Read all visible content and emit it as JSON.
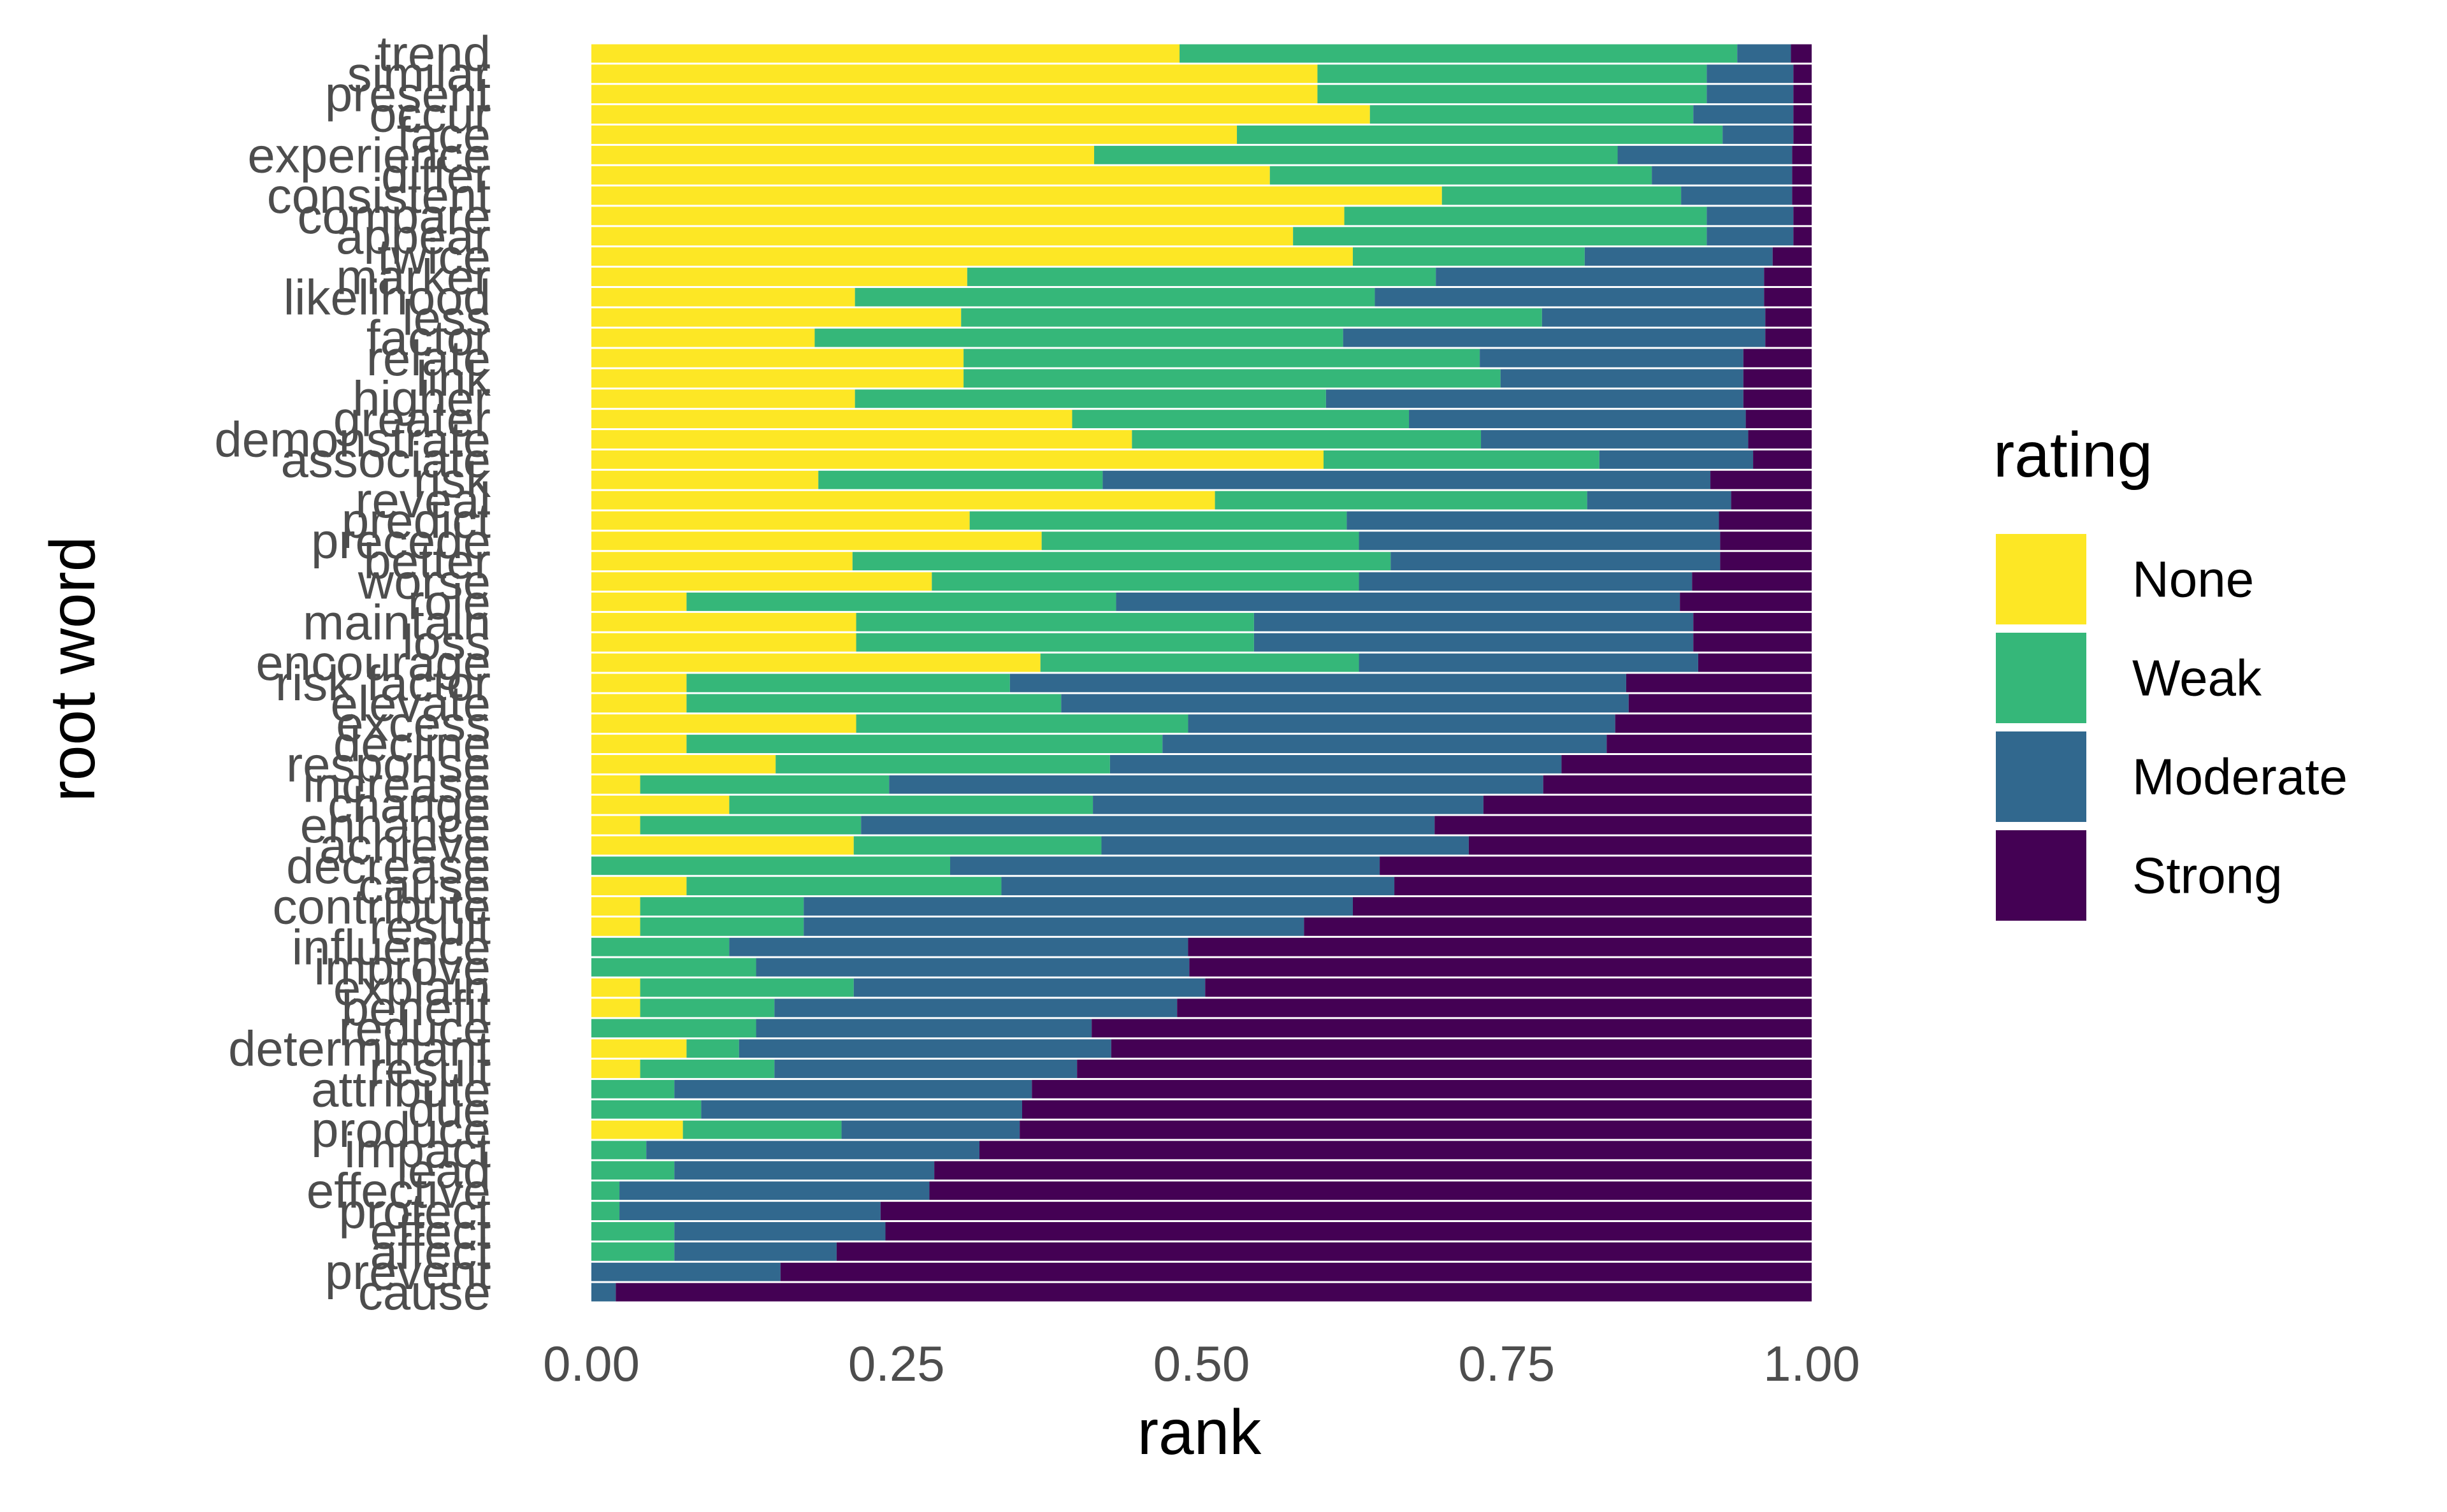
{
  "chart_data": {
    "type": "bar",
    "orientation": "horizontal",
    "stacked": "fill",
    "xlabel": "rank",
    "ylabel": "root word",
    "xlim": [
      0,
      1
    ],
    "xticks": [
      "0.00",
      "0.25",
      "0.50",
      "0.75",
      "1.00"
    ],
    "grid": false,
    "legend": {
      "title": "rating",
      "position": "right"
    },
    "series": [
      {
        "name": "None",
        "color": "#FDE725"
      },
      {
        "name": "Weak",
        "color": "#35B779"
      },
      {
        "name": "Moderate",
        "color": "#31688E"
      },
      {
        "name": "Strong",
        "color": "#440154"
      }
    ],
    "rows": [
      {
        "word": "trend",
        "values": [
          0.482,
          0.457,
          0.044,
          0.017
        ]
      },
      {
        "word": "similar",
        "values": [
          0.595,
          0.319,
          0.071,
          0.015
        ]
      },
      {
        "word": "present",
        "values": [
          0.595,
          0.319,
          0.071,
          0.015
        ]
      },
      {
        "word": "occur",
        "values": [
          0.638,
          0.265,
          0.082,
          0.015
        ]
      },
      {
        "word": "face",
        "values": [
          0.529,
          0.398,
          0.058,
          0.015
        ]
      },
      {
        "word": "experience",
        "values": [
          0.412,
          0.429,
          0.143,
          0.016
        ]
      },
      {
        "word": "differ",
        "values": [
          0.556,
          0.313,
          0.115,
          0.016
        ]
      },
      {
        "word": "consistent",
        "values": [
          0.697,
          0.196,
          0.091,
          0.016
        ]
      },
      {
        "word": "compare",
        "values": [
          0.617,
          0.297,
          0.071,
          0.015
        ]
      },
      {
        "word": "appear",
        "values": [
          0.575,
          0.339,
          0.071,
          0.015
        ]
      },
      {
        "word": "twice",
        "values": [
          0.624,
          0.19,
          0.154,
          0.032
        ]
      },
      {
        "word": "marker",
        "values": [
          0.308,
          0.384,
          0.269,
          0.039
        ]
      },
      {
        "word": "likelihood",
        "values": [
          0.216,
          0.426,
          0.319,
          0.039
        ]
      },
      {
        "word": "less",
        "values": [
          0.303,
          0.476,
          0.183,
          0.038
        ]
      },
      {
        "word": "factor",
        "values": [
          0.183,
          0.433,
          0.346,
          0.038
        ]
      },
      {
        "word": "relate",
        "values": [
          0.305,
          0.423,
          0.216,
          0.056
        ]
      },
      {
        "word": "link",
        "values": [
          0.305,
          0.44,
          0.199,
          0.056
        ]
      },
      {
        "word": "higher",
        "values": [
          0.216,
          0.386,
          0.342,
          0.056
        ]
      },
      {
        "word": "greater",
        "values": [
          0.394,
          0.276,
          0.276,
          0.054
        ]
      },
      {
        "word": "demonstrate",
        "values": [
          0.443,
          0.286,
          0.219,
          0.052
        ]
      },
      {
        "word": "associate",
        "values": [
          0.6,
          0.226,
          0.126,
          0.048
        ]
      },
      {
        "word": "risk",
        "values": [
          0.186,
          0.233,
          0.498,
          0.083
        ]
      },
      {
        "word": "reveal",
        "values": [
          0.511,
          0.305,
          0.118,
          0.066
        ]
      },
      {
        "word": "predict",
        "values": [
          0.31,
          0.309,
          0.305,
          0.076
        ]
      },
      {
        "word": "precede",
        "values": [
          0.369,
          0.26,
          0.296,
          0.075
        ]
      },
      {
        "word": "better",
        "values": [
          0.214,
          0.441,
          0.27,
          0.075
        ]
      },
      {
        "word": "worse",
        "values": [
          0.279,
          0.35,
          0.273,
          0.098
        ]
      },
      {
        "word": "role",
        "values": [
          0.078,
          0.352,
          0.462,
          0.108
        ]
      },
      {
        "word": "maintain",
        "values": [
          0.217,
          0.326,
          0.36,
          0.097
        ]
      },
      {
        "word": "loss",
        "values": [
          0.217,
          0.326,
          0.36,
          0.097
        ]
      },
      {
        "word": "encourage",
        "values": [
          0.368,
          0.261,
          0.278,
          0.093
        ]
      },
      {
        "word": "risk factor",
        "values": [
          0.078,
          0.265,
          0.505,
          0.152
        ]
      },
      {
        "word": "elevate",
        "values": [
          0.078,
          0.307,
          0.465,
          0.15
        ]
      },
      {
        "word": "excess",
        "values": [
          0.217,
          0.272,
          0.35,
          0.161
        ]
      },
      {
        "word": "decline",
        "values": [
          0.078,
          0.39,
          0.364,
          0.168
        ]
      },
      {
        "word": "response",
        "values": [
          0.151,
          0.274,
          0.37,
          0.205
        ]
      },
      {
        "word": "increase",
        "values": [
          0.04,
          0.204,
          0.536,
          0.22
        ]
      },
      {
        "word": "change",
        "values": [
          0.113,
          0.298,
          0.32,
          0.269
        ]
      },
      {
        "word": "enhance",
        "values": [
          0.04,
          0.181,
          0.47,
          0.309
        ]
      },
      {
        "word": "achieve",
        "values": [
          0.215,
          0.203,
          0.301,
          0.281
        ]
      },
      {
        "word": "decrease",
        "values": [
          0.0,
          0.294,
          0.352,
          0.354
        ]
      },
      {
        "word": "cause",
        "values": [
          0.078,
          0.258,
          0.322,
          0.342
        ]
      },
      {
        "word": "contribute",
        "values": [
          0.04,
          0.134,
          0.45,
          0.376
        ]
      },
      {
        "word": "result",
        "values": [
          0.04,
          0.134,
          0.41,
          0.416
        ]
      },
      {
        "word": "influence",
        "values": [
          0.0,
          0.113,
          0.376,
          0.511
        ]
      },
      {
        "word": "improve",
        "values": [
          0.0,
          0.135,
          0.355,
          0.51
        ]
      },
      {
        "word": "explain",
        "values": [
          0.04,
          0.175,
          0.288,
          0.497
        ]
      },
      {
        "word": "benefit",
        "values": [
          0.04,
          0.11,
          0.33,
          0.52
        ]
      },
      {
        "word": "reduce",
        "values": [
          0.0,
          0.135,
          0.275,
          0.59
        ]
      },
      {
        "word": "determinant",
        "values": [
          0.078,
          0.043,
          0.305,
          0.574
        ]
      },
      {
        "word": "result",
        "values": [
          0.04,
          0.11,
          0.248,
          0.602
        ]
      },
      {
        "word": "attribute",
        "values": [
          0.0,
          0.068,
          0.293,
          0.639
        ]
      },
      {
        "word": "due",
        "values": [
          0.0,
          0.09,
          0.263,
          0.647
        ]
      },
      {
        "word": "produce",
        "values": [
          0.075,
          0.13,
          0.146,
          0.649
        ]
      },
      {
        "word": "impact",
        "values": [
          0.0,
          0.045,
          0.273,
          0.682
        ]
      },
      {
        "word": "lead",
        "values": [
          0.0,
          0.068,
          0.213,
          0.719
        ]
      },
      {
        "word": "effective",
        "values": [
          0.0,
          0.023,
          0.254,
          0.723
        ]
      },
      {
        "word": "protect",
        "values": [
          0.0,
          0.023,
          0.214,
          0.763
        ]
      },
      {
        "word": "effect",
        "values": [
          0.0,
          0.068,
          0.173,
          0.759
        ]
      },
      {
        "word": "affect",
        "values": [
          0.0,
          0.068,
          0.133,
          0.799
        ]
      },
      {
        "word": "prevent",
        "values": [
          0.0,
          0.0,
          0.155,
          0.845
        ]
      },
      {
        "word": "cause",
        "values": [
          0.0,
          0.0,
          0.02,
          0.98
        ]
      }
    ]
  }
}
